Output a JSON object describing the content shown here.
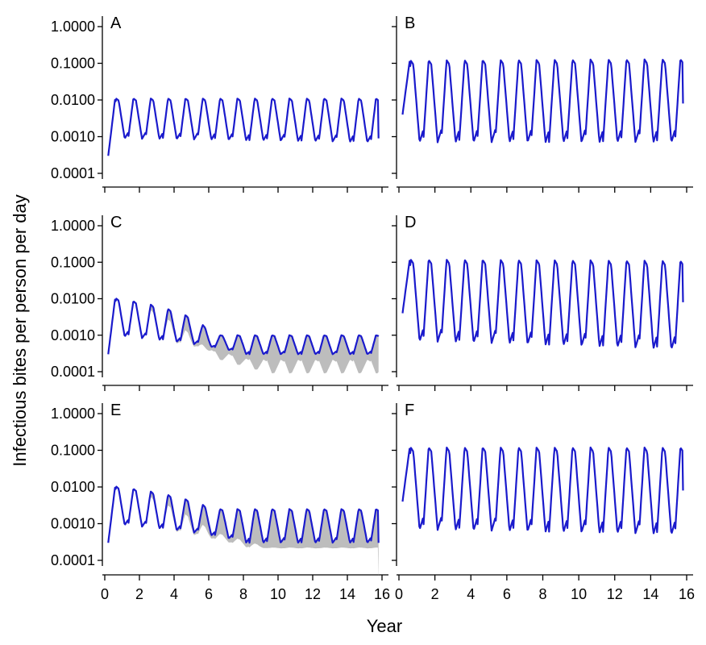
{
  "colors": {
    "series": "#1a1acc",
    "band": "#bdbdbd"
  },
  "chart_data": {
    "type": "line",
    "xlabel": "Year",
    "ylabel": "Infectious bites per person per day",
    "y_scale": "log",
    "ylim": [
      0.0001,
      1.0
    ],
    "y_ticks": [
      "0.0001",
      "0.0010",
      "0.0100",
      "0.1000",
      "1.0000"
    ],
    "x_ticks": [
      "0",
      "2",
      "4",
      "6",
      "8",
      "10",
      "12",
      "14",
      "16"
    ],
    "xlim": [
      0,
      16
    ],
    "grid": false,
    "panels": [
      {
        "letter": "A",
        "start": 0.0003,
        "first_peak": 0.011,
        "first_trough": 0.0009,
        "peak_end": 0.011,
        "trough_end": 0.0007,
        "last_value": 0.0009,
        "band": false
      },
      {
        "letter": "B",
        "start": 0.004,
        "first_peak": 0.12,
        "first_trough": 0.0007,
        "peak_end": 0.13,
        "trough_end": 0.0007,
        "last_value": 0.008,
        "band": false
      },
      {
        "letter": "C",
        "start": 0.0003,
        "first_peak": 0.011,
        "first_trough": 0.001,
        "peak_end": 0.001,
        "trough_end": 0.0003,
        "last_value": 0.001,
        "band": true
      },
      {
        "letter": "D",
        "start": 0.004,
        "first_peak": 0.12,
        "first_trough": 0.0007,
        "peak_end": 0.11,
        "trough_end": 0.0004,
        "last_value": 0.008,
        "band": false
      },
      {
        "letter": "E",
        "start": 0.0003,
        "first_peak": 0.011,
        "first_trough": 0.001,
        "peak_end": 0.0025,
        "trough_end": 0.0003,
        "last_value": 0.0003,
        "band": true
      },
      {
        "letter": "F",
        "start": 0.004,
        "first_peak": 0.12,
        "first_trough": 0.0007,
        "peak_end": 0.12,
        "trough_end": 0.0005,
        "last_value": 0.008,
        "band": false
      }
    ]
  }
}
